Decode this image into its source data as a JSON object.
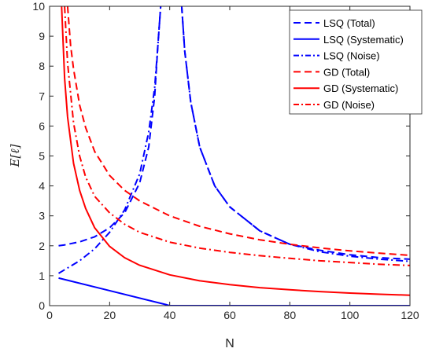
{
  "chart_data": {
    "type": "line",
    "title": "",
    "xlabel": "N",
    "ylabel": "E[ℓ]",
    "xlim": [
      0,
      120
    ],
    "ylim": [
      0,
      10
    ],
    "xticks": [
      0,
      20,
      40,
      60,
      80,
      100,
      120
    ],
    "yticks": [
      0,
      1,
      2,
      3,
      4,
      5,
      6,
      7,
      8,
      9,
      10
    ],
    "xtick_labels": [
      "0",
      "20",
      "40",
      "60",
      "80",
      "100",
      "120"
    ],
    "ytick_labels": [
      "0",
      "1",
      "2",
      "3",
      "4",
      "5",
      "6",
      "7",
      "8",
      "9",
      "10"
    ],
    "grid": false,
    "legend_position": "top-right",
    "series": [
      {
        "name": "LSQ (Total)",
        "color": "#0000ff",
        "dash": "dashed",
        "x": [
          3,
          5,
          10,
          15,
          20,
          25,
          30,
          33,
          35,
          36,
          37
        ],
        "y": [
          2.0,
          2.03,
          2.13,
          2.3,
          2.6,
          3.1,
          4.1,
          5.3,
          7.0,
          8.6,
          10.0
        ]
      },
      {
        "name": "LSQ (Total)",
        "color": "#0000ff",
        "dash": "dashed",
        "x": [
          44,
          45,
          47,
          50,
          55,
          60,
          70,
          80,
          90,
          100,
          110,
          120
        ],
        "y": [
          10.0,
          8.5,
          6.8,
          5.3,
          4.0,
          3.3,
          2.5,
          2.05,
          1.85,
          1.7,
          1.6,
          1.55
        ]
      },
      {
        "name": "LSQ (Systematic)",
        "color": "#0000ff",
        "dash": "solid",
        "x": [
          3,
          39,
          40,
          120
        ],
        "y": [
          0.92,
          0.03,
          0,
          0
        ]
      },
      {
        "name": "LSQ (Noise)",
        "color": "#0000ff",
        "dash": "dashdot",
        "x": [
          3,
          5,
          10,
          15,
          20,
          25,
          30,
          33,
          35,
          36,
          37
        ],
        "y": [
          1.08,
          1.2,
          1.5,
          1.9,
          2.45,
          3.2,
          4.4,
          5.8,
          7.3,
          8.6,
          10.0
        ]
      },
      {
        "name": "LSQ (Noise)",
        "color": "#0000ff",
        "dash": "dashdot",
        "x": [
          44,
          45,
          47,
          50,
          55,
          60,
          70,
          80,
          90,
          100,
          110,
          120
        ],
        "y": [
          10.0,
          8.5,
          6.8,
          5.3,
          4.0,
          3.3,
          2.5,
          2.05,
          1.8,
          1.65,
          1.55,
          1.48
        ]
      },
      {
        "name": "GD (Total)",
        "color": "#ff0000",
        "dash": "dashed",
        "x": [
          6,
          7,
          8,
          10,
          12,
          15,
          20,
          25,
          30,
          40,
          50,
          60,
          70,
          80,
          90,
          100,
          110,
          120
        ],
        "y": [
          10.0,
          8.7,
          7.9,
          6.7,
          5.95,
          5.15,
          4.35,
          3.85,
          3.5,
          3.0,
          2.65,
          2.4,
          2.2,
          2.05,
          1.93,
          1.83,
          1.75,
          1.68
        ]
      },
      {
        "name": "GD (Systematic)",
        "color": "#ff0000",
        "dash": "solid",
        "x": [
          4,
          5,
          6,
          8,
          10,
          12,
          15,
          20,
          25,
          30,
          40,
          50,
          60,
          70,
          80,
          90,
          100,
          110,
          120
        ],
        "y": [
          10.0,
          7.6,
          6.3,
          4.75,
          3.85,
          3.25,
          2.6,
          1.98,
          1.6,
          1.35,
          1.03,
          0.83,
          0.7,
          0.6,
          0.53,
          0.47,
          0.42,
          0.38,
          0.35
        ]
      },
      {
        "name": "GD (Noise)",
        "color": "#ff0000",
        "dash": "dashdot",
        "x": [
          5,
          6,
          8,
          10,
          12,
          15,
          20,
          25,
          30,
          40,
          50,
          60,
          70,
          80,
          90,
          100,
          110,
          120
        ],
        "y": [
          10.0,
          8.1,
          6.1,
          5.0,
          4.3,
          3.65,
          3.1,
          2.72,
          2.45,
          2.12,
          1.92,
          1.78,
          1.67,
          1.58,
          1.5,
          1.44,
          1.38,
          1.34
        ]
      }
    ],
    "legend": [
      {
        "label": "LSQ (Total)",
        "color": "#0000ff",
        "dash": "dashed"
      },
      {
        "label": "LSQ (Systematic)",
        "color": "#0000ff",
        "dash": "solid"
      },
      {
        "label": "LSQ (Noise)",
        "color": "#0000ff",
        "dash": "dashdot"
      },
      {
        "label": "GD (Total)",
        "color": "#ff0000",
        "dash": "dashed"
      },
      {
        "label": "GD (Systematic)",
        "color": "#ff0000",
        "dash": "solid"
      },
      {
        "label": "GD (Noise)",
        "color": "#ff0000",
        "dash": "dashdot"
      }
    ]
  }
}
